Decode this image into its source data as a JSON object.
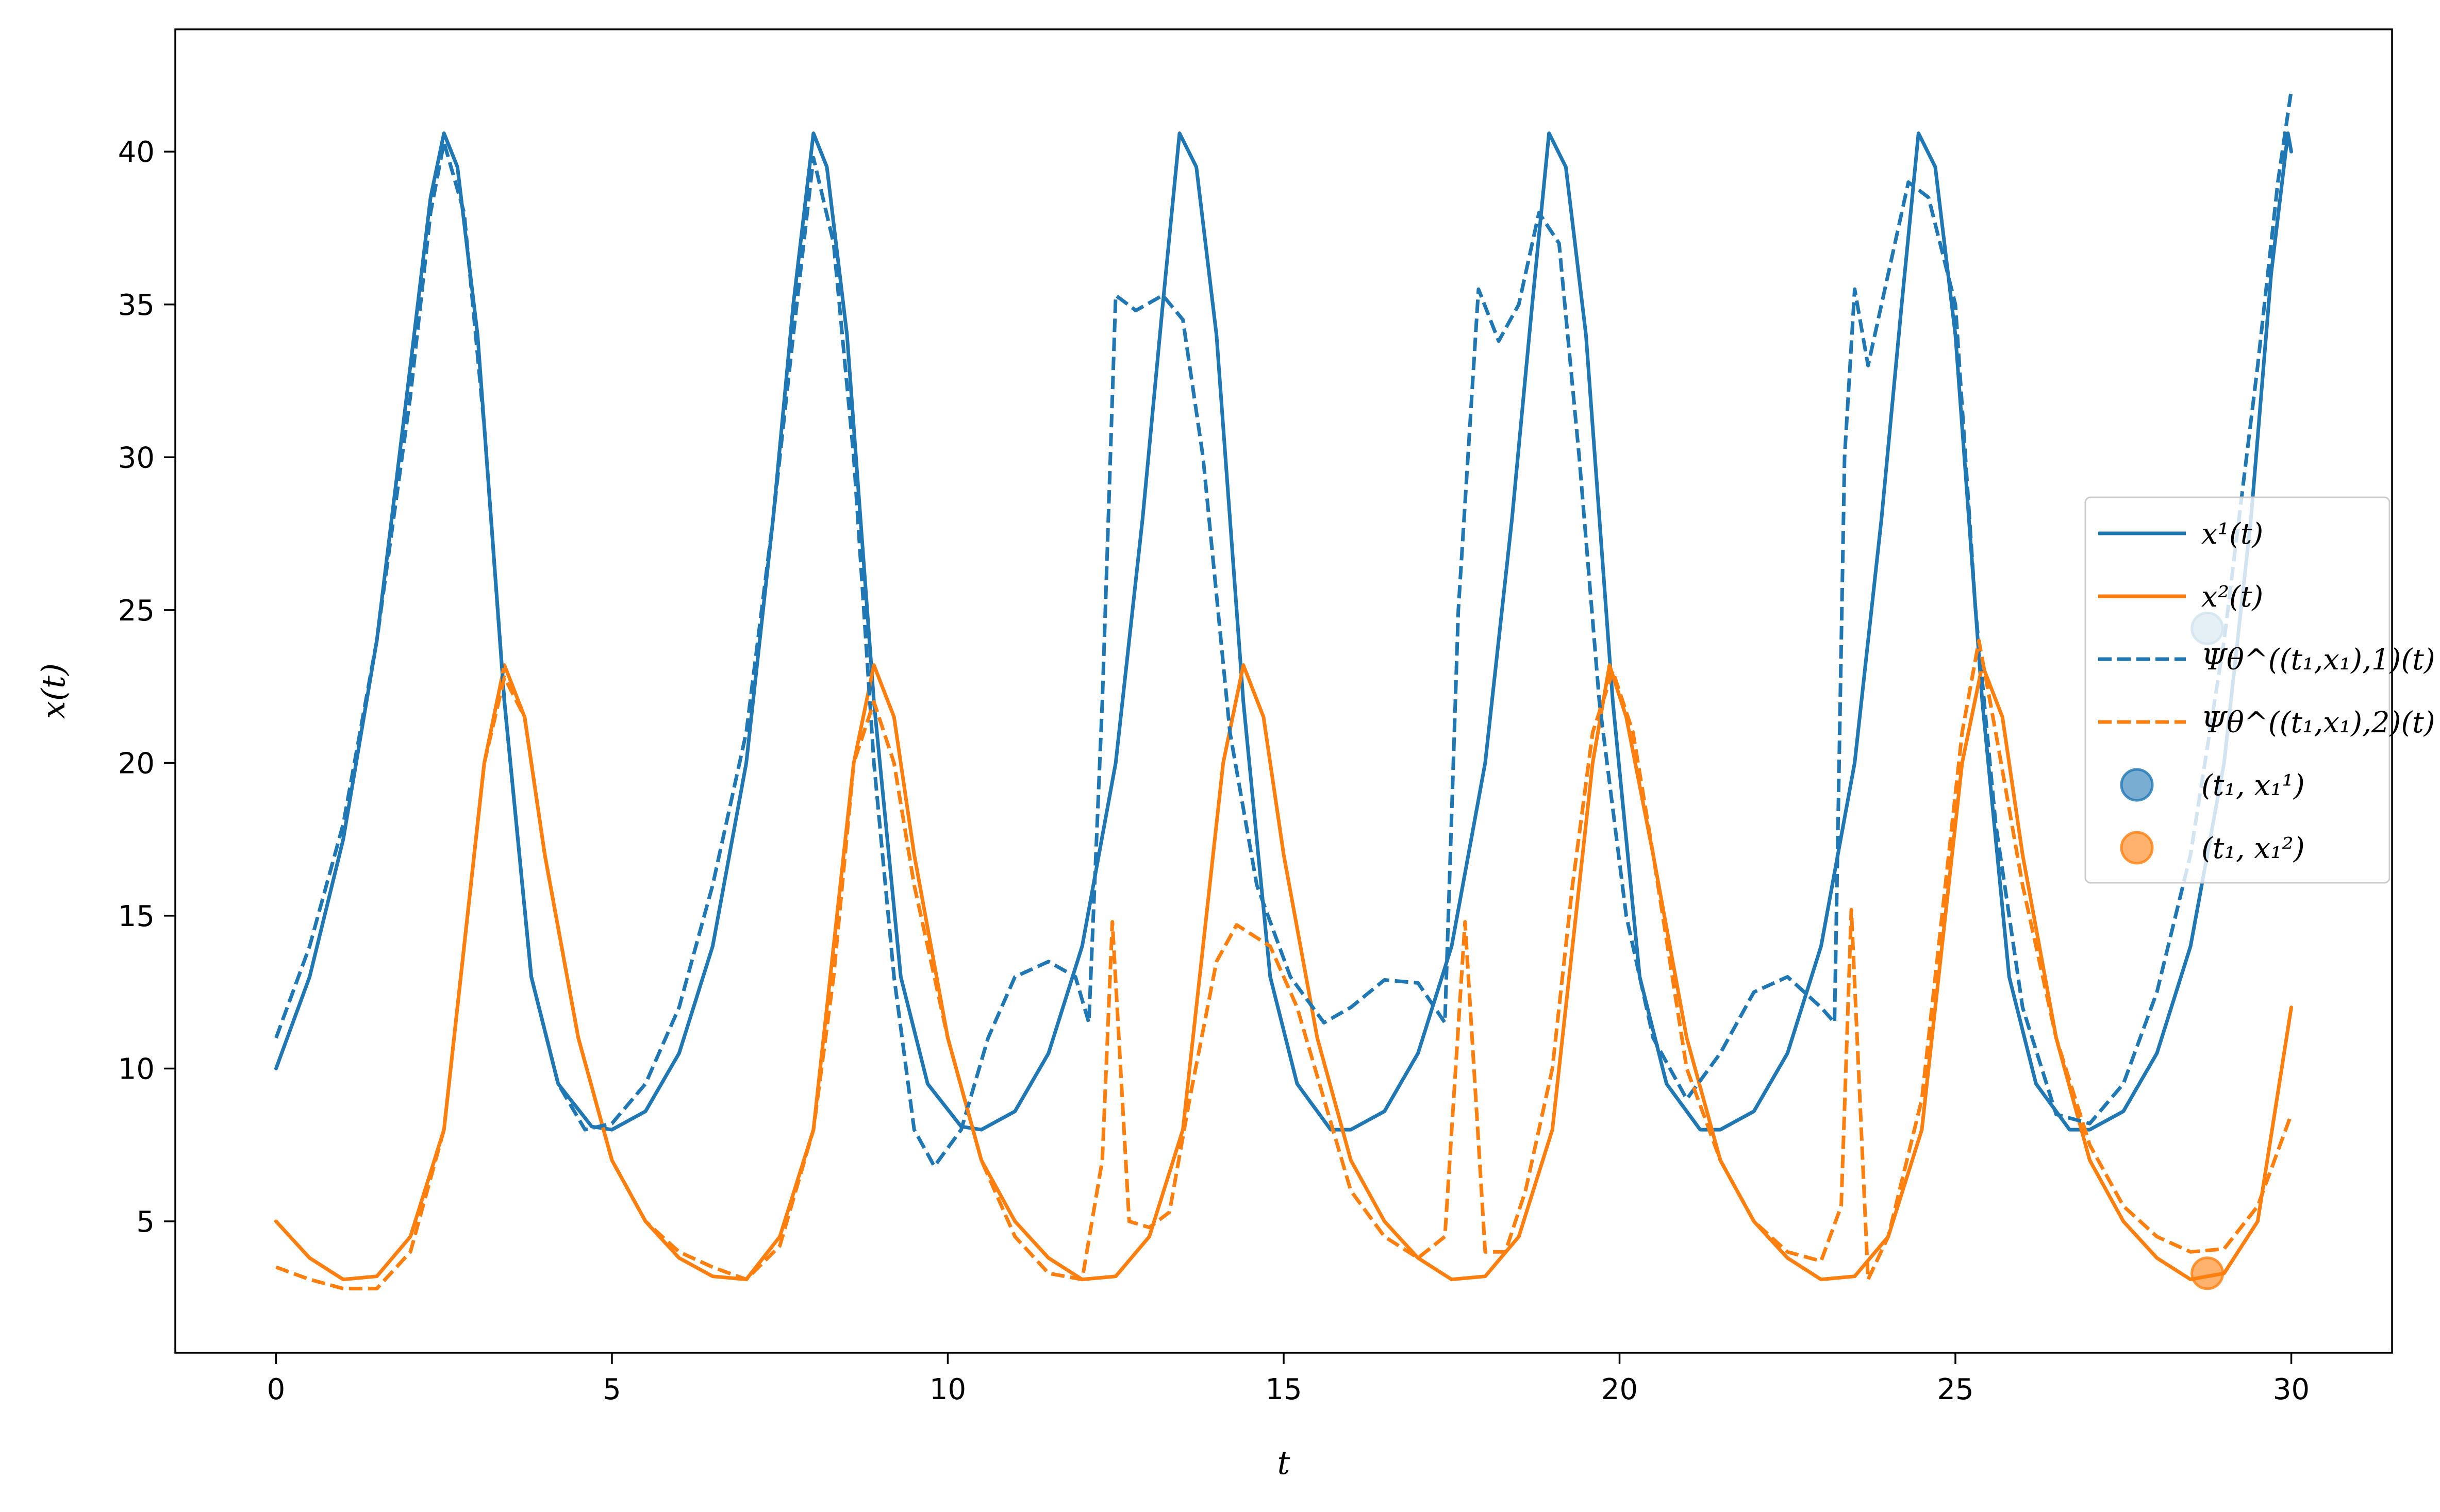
{
  "chart_data": {
    "type": "line",
    "xlabel": "t",
    "ylabel": "x(t)",
    "xlim": [
      -1.5,
      31.5
    ],
    "ylim": [
      0.7,
      44
    ],
    "xticks": [
      0,
      5,
      10,
      15,
      20,
      25,
      30
    ],
    "yticks": [
      5,
      10,
      15,
      20,
      25,
      30,
      35,
      40
    ],
    "grid": false,
    "legend_position": "center-right",
    "colors": {
      "blue": "#1f77b4",
      "orange": "#ff7f0e"
    },
    "series": [
      {
        "name": "x¹(t)",
        "style": "solid",
        "color": "#1f77b4",
        "points": [
          [
            0,
            10
          ],
          [
            0.5,
            13
          ],
          [
            1,
            17.5
          ],
          [
            1.5,
            24
          ],
          [
            2,
            33
          ],
          [
            2.3,
            38.5
          ],
          [
            2.5,
            40.6
          ],
          [
            2.7,
            39.5
          ],
          [
            3,
            34
          ],
          [
            3.4,
            22
          ],
          [
            3.8,
            13
          ],
          [
            4.2,
            9.5
          ],
          [
            4.7,
            8.1
          ],
          [
            5,
            8
          ],
          [
            5.5,
            8.6
          ],
          [
            6,
            10.5
          ],
          [
            6.5,
            14
          ],
          [
            7,
            20
          ],
          [
            7.4,
            28
          ],
          [
            7.7,
            35
          ],
          [
            8,
            40.6
          ],
          [
            8.2,
            39.5
          ],
          [
            8.5,
            34
          ],
          [
            8.9,
            22
          ],
          [
            9.3,
            13
          ],
          [
            9.7,
            9.5
          ],
          [
            10.2,
            8.1
          ],
          [
            10.5,
            8
          ],
          [
            11,
            8.6
          ],
          [
            11.5,
            10.5
          ],
          [
            12,
            14
          ],
          [
            12.5,
            20
          ],
          [
            12.9,
            28
          ],
          [
            13.2,
            35
          ],
          [
            13.45,
            40.6
          ],
          [
            13.7,
            39.5
          ],
          [
            14,
            34
          ],
          [
            14.4,
            22
          ],
          [
            14.8,
            13
          ],
          [
            15.2,
            9.5
          ],
          [
            15.7,
            8
          ],
          [
            16,
            8
          ],
          [
            16.5,
            8.6
          ],
          [
            17,
            10.5
          ],
          [
            17.5,
            14
          ],
          [
            18,
            20
          ],
          [
            18.4,
            28
          ],
          [
            18.7,
            35
          ],
          [
            18.95,
            40.6
          ],
          [
            19.2,
            39.5
          ],
          [
            19.5,
            34
          ],
          [
            19.9,
            22
          ],
          [
            20.3,
            13
          ],
          [
            20.7,
            9.5
          ],
          [
            21.2,
            8
          ],
          [
            21.5,
            8
          ],
          [
            22,
            8.6
          ],
          [
            22.5,
            10.5
          ],
          [
            23,
            14
          ],
          [
            23.5,
            20
          ],
          [
            23.9,
            28
          ],
          [
            24.2,
            35
          ],
          [
            24.45,
            40.6
          ],
          [
            24.7,
            39.5
          ],
          [
            25,
            34
          ],
          [
            25.4,
            22
          ],
          [
            25.8,
            13
          ],
          [
            26.2,
            9.5
          ],
          [
            26.7,
            8
          ],
          [
            27,
            8
          ],
          [
            27.5,
            8.6
          ],
          [
            28,
            10.5
          ],
          [
            28.5,
            14
          ],
          [
            29,
            20
          ],
          [
            29.4,
            28
          ],
          [
            29.7,
            36
          ],
          [
            29.95,
            40.6
          ],
          [
            30,
            40
          ]
        ]
      },
      {
        "name": "x²(t)",
        "style": "solid",
        "color": "#ff7f0e",
        "points": [
          [
            0,
            5
          ],
          [
            0.5,
            3.8
          ],
          [
            1,
            3.1
          ],
          [
            1.5,
            3.2
          ],
          [
            2,
            4.5
          ],
          [
            2.5,
            8
          ],
          [
            2.8,
            14
          ],
          [
            3.1,
            20
          ],
          [
            3.4,
            23.2
          ],
          [
            3.7,
            21.5
          ],
          [
            4,
            17
          ],
          [
            4.5,
            11
          ],
          [
            5,
            7
          ],
          [
            5.5,
            5
          ],
          [
            6,
            3.8
          ],
          [
            6.5,
            3.2
          ],
          [
            7,
            3.1
          ],
          [
            7.5,
            4.5
          ],
          [
            8,
            8
          ],
          [
            8.3,
            14
          ],
          [
            8.6,
            20
          ],
          [
            8.9,
            23.2
          ],
          [
            9.2,
            21.5
          ],
          [
            9.5,
            17
          ],
          [
            10,
            11
          ],
          [
            10.5,
            7
          ],
          [
            11,
            5
          ],
          [
            11.5,
            3.8
          ],
          [
            12,
            3.1
          ],
          [
            12.5,
            3.2
          ],
          [
            13,
            4.5
          ],
          [
            13.5,
            8
          ],
          [
            13.8,
            14
          ],
          [
            14.1,
            20
          ],
          [
            14.4,
            23.2
          ],
          [
            14.7,
            21.5
          ],
          [
            15,
            17
          ],
          [
            15.5,
            11
          ],
          [
            16,
            7
          ],
          [
            16.5,
            5
          ],
          [
            17,
            3.8
          ],
          [
            17.5,
            3.1
          ],
          [
            18,
            3.2
          ],
          [
            18.5,
            4.5
          ],
          [
            19,
            8
          ],
          [
            19.3,
            14
          ],
          [
            19.6,
            20
          ],
          [
            19.85,
            23.2
          ],
          [
            20.1,
            21.5
          ],
          [
            20.5,
            17
          ],
          [
            21,
            11
          ],
          [
            21.5,
            7
          ],
          [
            22,
            5
          ],
          [
            22.5,
            3.8
          ],
          [
            23,
            3.1
          ],
          [
            23.5,
            3.2
          ],
          [
            24,
            4.5
          ],
          [
            24.5,
            8
          ],
          [
            24.8,
            14
          ],
          [
            25.1,
            20
          ],
          [
            25.4,
            23.2
          ],
          [
            25.7,
            21.5
          ],
          [
            26,
            17
          ],
          [
            26.5,
            11
          ],
          [
            27,
            7
          ],
          [
            27.5,
            5
          ],
          [
            28,
            3.8
          ],
          [
            28.5,
            3.1
          ],
          [
            29,
            3.3
          ],
          [
            29.5,
            5
          ],
          [
            30,
            12
          ]
        ]
      },
      {
        "name": "Ψθ^((t₁,x₁),1)(t)",
        "style": "dashed",
        "color": "#1f77b4",
        "points": [
          [
            0,
            11
          ],
          [
            0.5,
            14
          ],
          [
            1,
            18
          ],
          [
            1.5,
            24
          ],
          [
            2,
            32
          ],
          [
            2.3,
            38
          ],
          [
            2.5,
            40.3
          ],
          [
            2.8,
            38
          ],
          [
            3.1,
            31
          ],
          [
            3.4,
            22
          ],
          [
            3.8,
            13
          ],
          [
            4.2,
            9.5
          ],
          [
            4.6,
            8
          ],
          [
            5,
            8.2
          ],
          [
            5.5,
            9.5
          ],
          [
            6,
            12
          ],
          [
            6.5,
            16
          ],
          [
            7,
            21
          ],
          [
            7.4,
            28
          ],
          [
            7.7,
            34
          ],
          [
            8,
            39.8
          ],
          [
            8.3,
            37
          ],
          [
            8.6,
            30
          ],
          [
            8.9,
            20
          ],
          [
            9.2,
            13
          ],
          [
            9.5,
            8
          ],
          [
            9.8,
            6.8
          ],
          [
            10.2,
            8
          ],
          [
            10.6,
            11
          ],
          [
            11,
            13
          ],
          [
            11.5,
            13.5
          ],
          [
            11.9,
            13
          ],
          [
            12.1,
            11.5
          ],
          [
            12.3,
            22
          ],
          [
            12.5,
            35.3
          ],
          [
            12.8,
            34.8
          ],
          [
            13.2,
            35.3
          ],
          [
            13.5,
            34.5
          ],
          [
            13.8,
            30
          ],
          [
            14.2,
            21
          ],
          [
            14.6,
            16
          ],
          [
            15.1,
            13
          ],
          [
            15.6,
            11.5
          ],
          [
            16,
            12
          ],
          [
            16.5,
            12.9
          ],
          [
            17,
            12.8
          ],
          [
            17.4,
            11.5
          ],
          [
            17.6,
            25
          ],
          [
            17.9,
            35.5
          ],
          [
            18.2,
            33.8
          ],
          [
            18.5,
            35
          ],
          [
            18.8,
            38
          ],
          [
            19.1,
            37
          ],
          [
            19.4,
            30
          ],
          [
            19.7,
            22
          ],
          [
            20.1,
            15
          ],
          [
            20.5,
            11
          ],
          [
            21,
            9
          ],
          [
            21.5,
            10.5
          ],
          [
            22,
            12.5
          ],
          [
            22.5,
            13
          ],
          [
            23,
            12
          ],
          [
            23.2,
            11.5
          ],
          [
            23.35,
            30
          ],
          [
            23.5,
            35.5
          ],
          [
            23.7,
            33
          ],
          [
            24,
            36
          ],
          [
            24.3,
            39
          ],
          [
            24.6,
            38.5
          ],
          [
            25,
            35
          ],
          [
            25.3,
            25
          ],
          [
            25.6,
            18
          ],
          [
            26,
            12
          ],
          [
            26.5,
            8.5
          ],
          [
            27,
            8.2
          ],
          [
            27.5,
            9.5
          ],
          [
            28,
            12.5
          ],
          [
            28.5,
            17
          ],
          [
            29,
            24
          ],
          [
            29.5,
            33
          ],
          [
            29.8,
            39
          ],
          [
            30,
            42
          ]
        ]
      },
      {
        "name": "Ψθ^((t₁,x₁),2)(t)",
        "style": "dashed",
        "color": "#ff7f0e",
        "points": [
          [
            0,
            3.5
          ],
          [
            0.5,
            3.1
          ],
          [
            1,
            2.8
          ],
          [
            1.5,
            2.8
          ],
          [
            2,
            4
          ],
          [
            2.5,
            8
          ],
          [
            2.8,
            14
          ],
          [
            3.1,
            20
          ],
          [
            3.4,
            22.8
          ],
          [
            3.7,
            21.5
          ],
          [
            4,
            17
          ],
          [
            4.5,
            11
          ],
          [
            5,
            7
          ],
          [
            5.5,
            5
          ],
          [
            6,
            4
          ],
          [
            6.5,
            3.5
          ],
          [
            7,
            3.1
          ],
          [
            7.5,
            4.2
          ],
          [
            8,
            8
          ],
          [
            8.3,
            13
          ],
          [
            8.6,
            20
          ],
          [
            8.9,
            22
          ],
          [
            9.2,
            20
          ],
          [
            9.5,
            16
          ],
          [
            10,
            11
          ],
          [
            10.5,
            7
          ],
          [
            11,
            4.5
          ],
          [
            11.5,
            3.3
          ],
          [
            12,
            3.1
          ],
          [
            12.3,
            7
          ],
          [
            12.45,
            14.8
          ],
          [
            12.7,
            5
          ],
          [
            13,
            4.8
          ],
          [
            13.3,
            5.3
          ],
          [
            13.6,
            9
          ],
          [
            14,
            13.5
          ],
          [
            14.3,
            14.7
          ],
          [
            14.8,
            14
          ],
          [
            15.2,
            12
          ],
          [
            15.6,
            9
          ],
          [
            16,
            6
          ],
          [
            16.5,
            4.5
          ],
          [
            17,
            3.8
          ],
          [
            17.4,
            4.5
          ],
          [
            17.7,
            14.8
          ],
          [
            18,
            4
          ],
          [
            18.3,
            4
          ],
          [
            18.6,
            6
          ],
          [
            19,
            10
          ],
          [
            19.3,
            16
          ],
          [
            19.6,
            21
          ],
          [
            19.9,
            23
          ],
          [
            20.2,
            21
          ],
          [
            20.5,
            17
          ],
          [
            21,
            10
          ],
          [
            21.5,
            7
          ],
          [
            22,
            5
          ],
          [
            22.5,
            4
          ],
          [
            23,
            3.7
          ],
          [
            23.3,
            5.5
          ],
          [
            23.45,
            15.2
          ],
          [
            23.7,
            3.1
          ],
          [
            24,
            4.5
          ],
          [
            24.5,
            9
          ],
          [
            24.8,
            15
          ],
          [
            25.1,
            21
          ],
          [
            25.35,
            24
          ],
          [
            25.6,
            21
          ],
          [
            26,
            16
          ],
          [
            26.5,
            11
          ],
          [
            27,
            7.5
          ],
          [
            27.5,
            5.5
          ],
          [
            28,
            4.5
          ],
          [
            28.5,
            4
          ],
          [
            29,
            4.1
          ],
          [
            29.5,
            5.5
          ],
          [
            30,
            8.5
          ]
        ]
      }
    ],
    "scatter": [
      {
        "name": "(t₁, x₁¹)",
        "color": "#1f77b4",
        "x": 28.75,
        "y": 24.4
      },
      {
        "name": "(t₁, x₁²)",
        "color": "#ff7f0e",
        "x": 28.75,
        "y": 3.3
      }
    ]
  }
}
